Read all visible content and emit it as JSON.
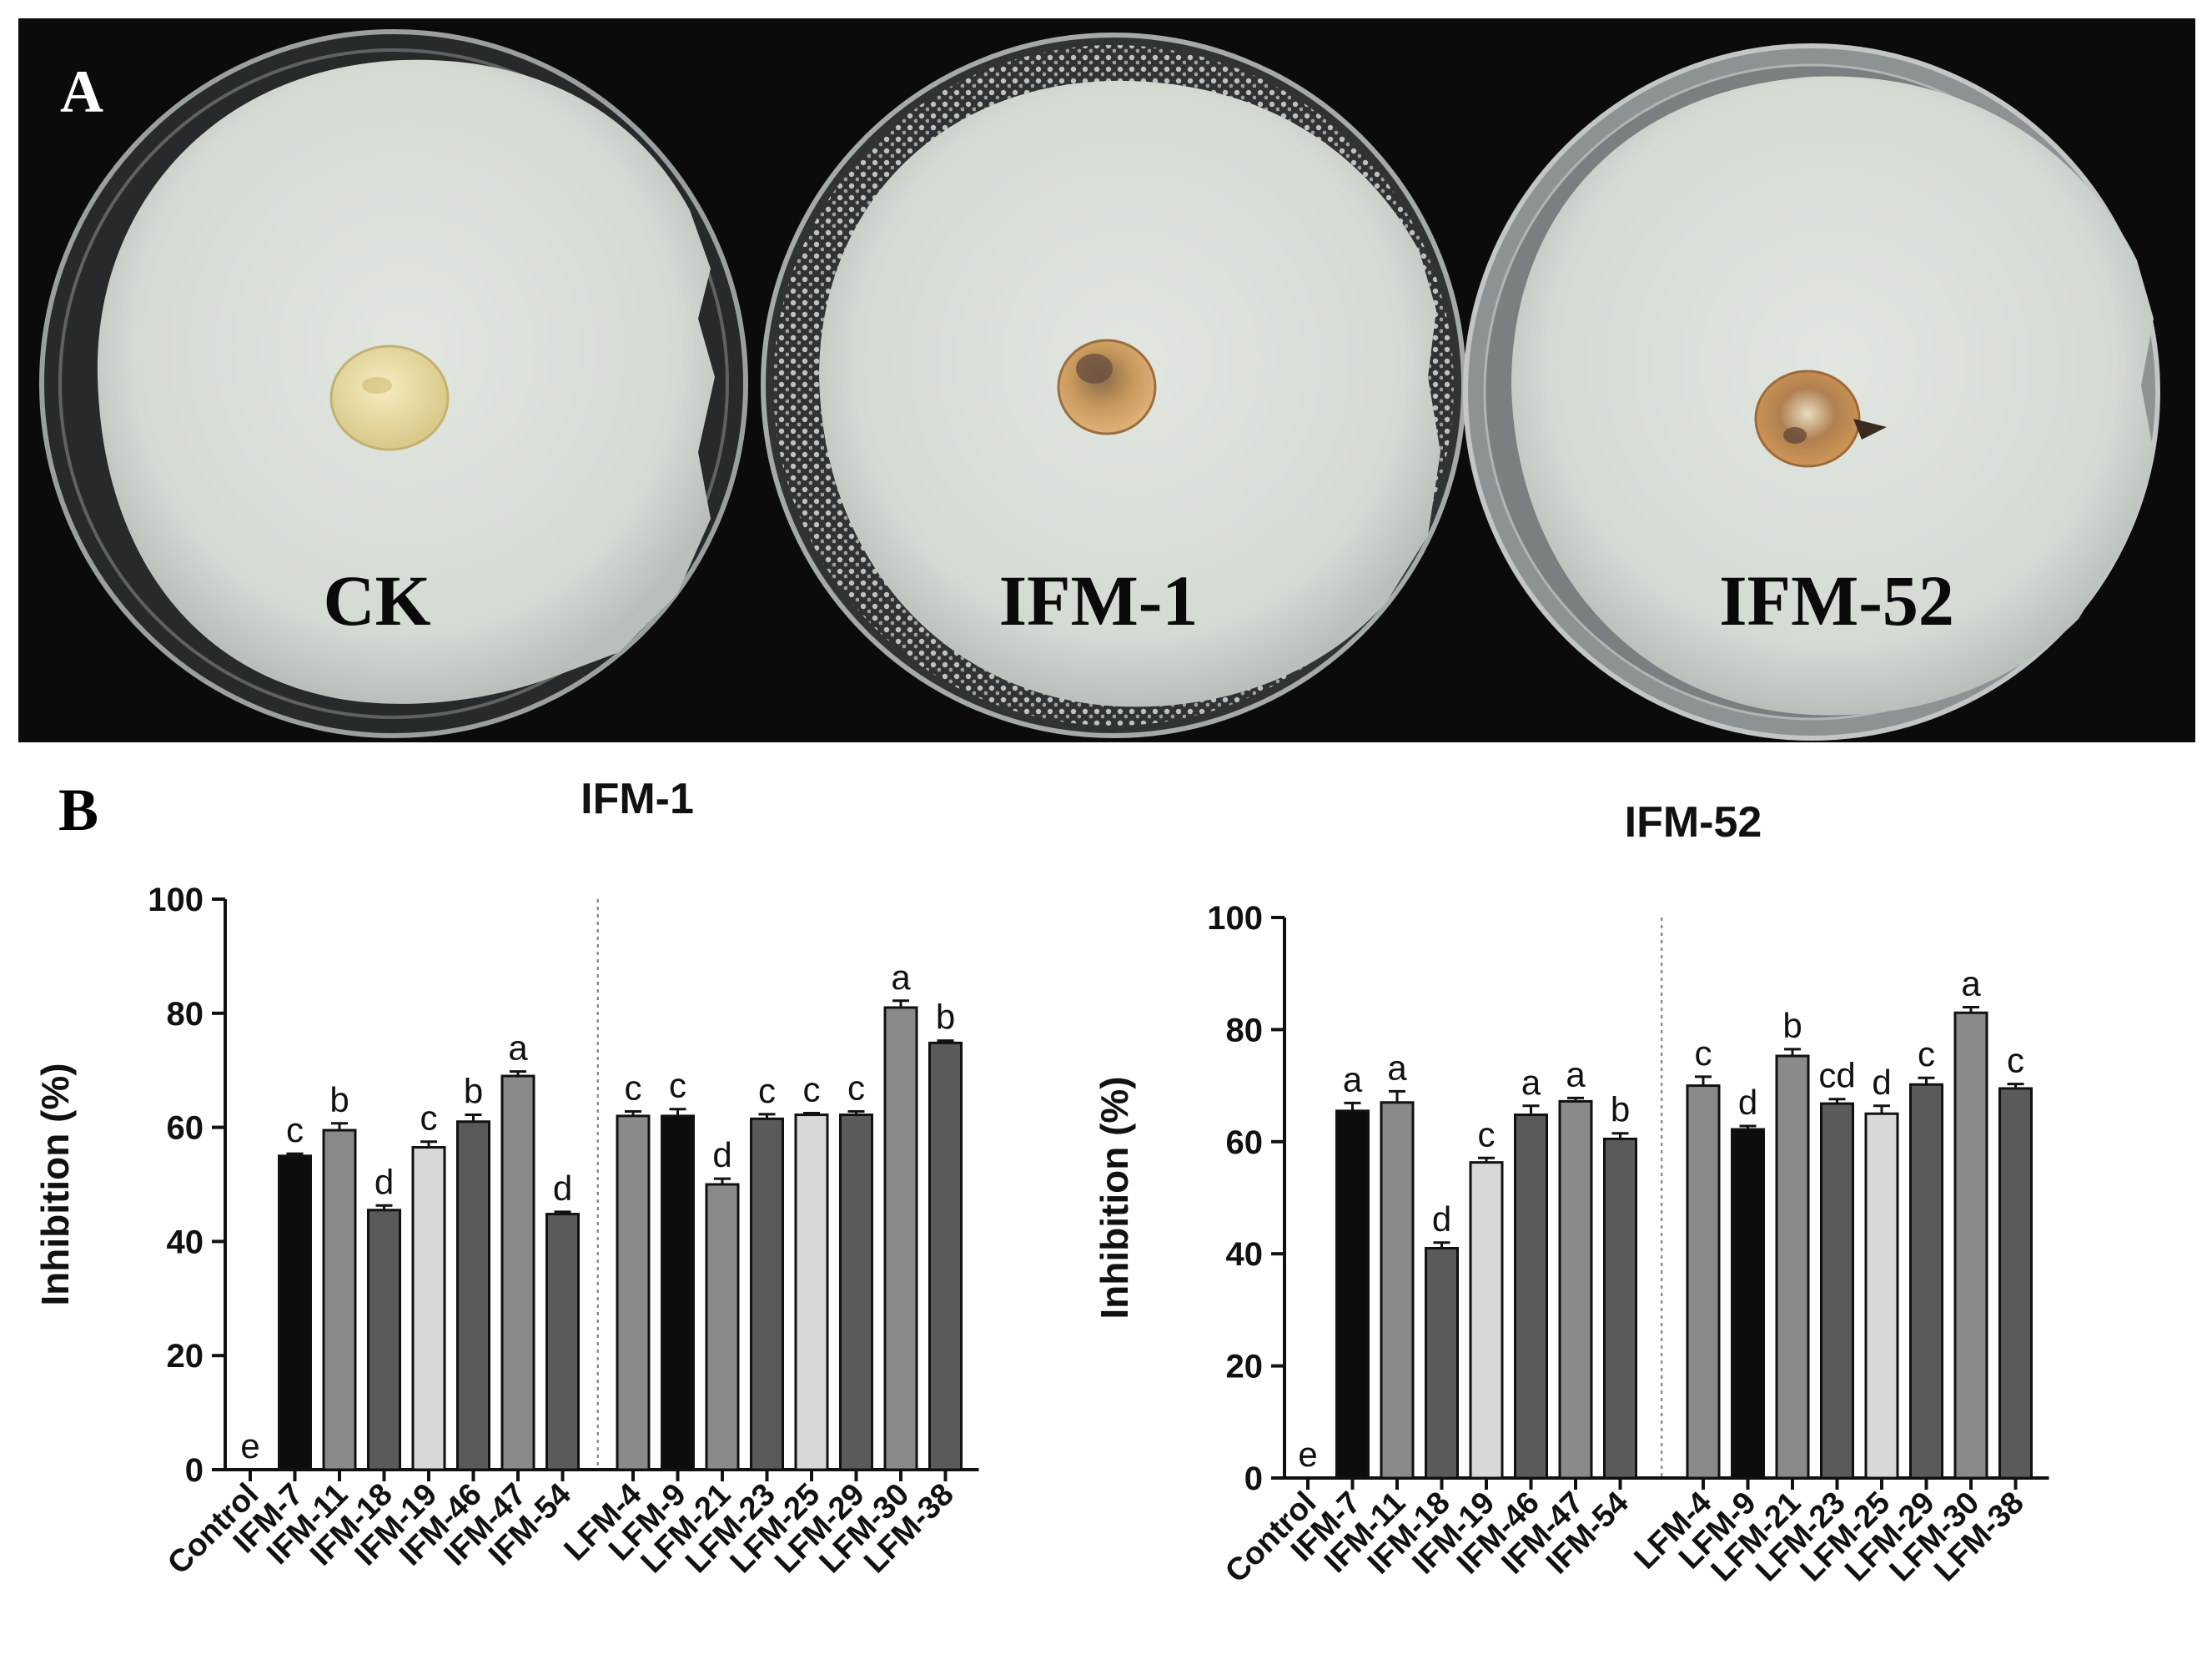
{
  "panel_a": {
    "letter": "A",
    "dishes": [
      {
        "label": "CK",
        "inoculum_color": "#eadfa8"
      },
      {
        "label": "IFM-1",
        "inoculum_color": "#c99a5c"
      },
      {
        "label": "IFM-52",
        "inoculum_color": "#c69050"
      }
    ],
    "colors": {
      "background": "#0b0b0b",
      "filter_paper": "#dde3dc",
      "dish_rim": "#9aa0a0"
    }
  },
  "panel_b": {
    "letter": "B"
  },
  "colors": {
    "black": "#0d0d0d",
    "dark_gray": "#5a5a5a",
    "mid_gray": "#8a8a8a",
    "light_gray": "#d8d8d8",
    "label_text": "#111111",
    "divider": "#777777"
  },
  "chart_data": [
    {
      "type": "bar",
      "title": "IFM-1",
      "ylabel": "Inhibition (%)",
      "xlabel": "",
      "ylim": [
        0,
        100
      ],
      "yticks": [
        0,
        20,
        40,
        60,
        80,
        100
      ],
      "grid": false,
      "legend": "none",
      "groups_separated_after": "IFM-54",
      "categories": [
        "Control",
        "IFM-7",
        "IFM-11",
        "IFM-18",
        "IFM-19",
        "IFM-46",
        "IFM-47",
        "IFM-54",
        "LFM-4",
        "LFM-9",
        "LFM-21",
        "LFM-23",
        "LFM-25",
        "LFM-29",
        "LFM-30",
        "LFM-38"
      ],
      "values": [
        0,
        55,
        59.5,
        45.5,
        56.5,
        61,
        69,
        44.8,
        62,
        62,
        50,
        61.5,
        62.2,
        62.2,
        81,
        74.8
      ],
      "errors": [
        0,
        0.4,
        1.2,
        0.8,
        1.0,
        1.2,
        0.8,
        0.4,
        0.8,
        1.2,
        1.0,
        0.8,
        0.3,
        0.6,
        1.2,
        0.4
      ],
      "letters": [
        "e",
        "c",
        "b",
        "d",
        "c",
        "b",
        "a",
        "d",
        "c",
        "c",
        "d",
        "c",
        "c",
        "c",
        "a",
        "b"
      ],
      "bar_fill": [
        "none",
        "black",
        "mid_gray",
        "dark_gray",
        "light_gray",
        "dark_gray",
        "mid_gray",
        "dark_gray",
        "mid_gray",
        "black",
        "mid_gray",
        "dark_gray",
        "light_gray",
        "dark_gray",
        "mid_gray",
        "dark_gray"
      ]
    },
    {
      "type": "bar",
      "title": "IFM-52",
      "ylabel": "Inhibition (%)",
      "xlabel": "",
      "ylim": [
        0,
        100
      ],
      "yticks": [
        0,
        20,
        40,
        60,
        80,
        100
      ],
      "grid": false,
      "legend": "none",
      "groups_separated_after": "IFM-54",
      "categories": [
        "Control",
        "IFM-7",
        "IFM-11",
        "IFM-18",
        "IFM-19",
        "IFM-46",
        "IFM-47",
        "IFM-54",
        "LFM-4",
        "LFM-9",
        "LFM-21",
        "LFM-23",
        "LFM-25",
        "LFM-29",
        "LFM-30",
        "LFM-38"
      ],
      "values": [
        0,
        65.5,
        67,
        41,
        56.3,
        64.8,
        67.2,
        60.5,
        70,
        62.2,
        75.3,
        66.8,
        65,
        70.2,
        83,
        69.5
      ],
      "errors": [
        0,
        1.4,
        2.0,
        1.0,
        0.8,
        1.6,
        0.6,
        1.0,
        1.6,
        0.6,
        1.2,
        0.8,
        1.4,
        1.2,
        1.0,
        0.8
      ],
      "letters": [
        "e",
        "a",
        "a",
        "d",
        "c",
        "a",
        "a",
        "b",
        "c",
        "d",
        "b",
        "cd",
        "d",
        "c",
        "a",
        "c"
      ],
      "bar_fill": [
        "none",
        "black",
        "mid_gray",
        "dark_gray",
        "light_gray",
        "dark_gray",
        "mid_gray",
        "dark_gray",
        "mid_gray",
        "black",
        "mid_gray",
        "dark_gray",
        "light_gray",
        "dark_gray",
        "mid_gray",
        "dark_gray"
      ]
    }
  ]
}
